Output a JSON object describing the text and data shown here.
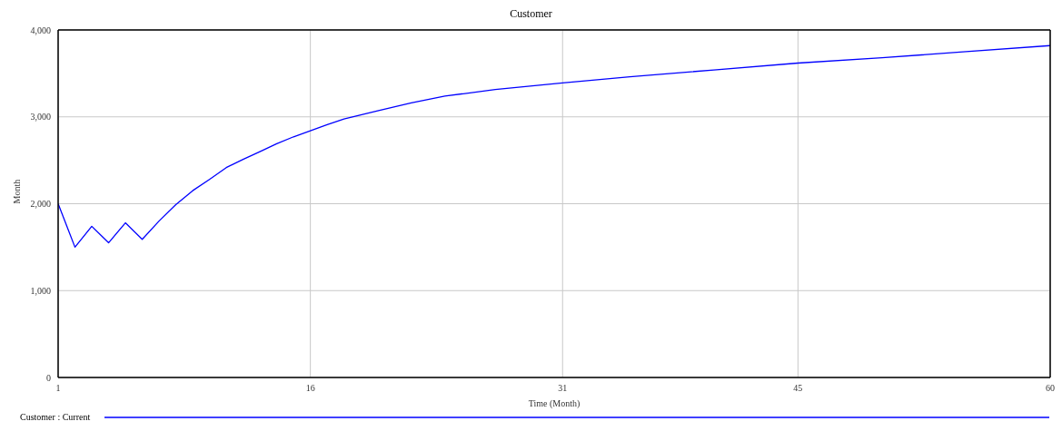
{
  "chart_data": {
    "type": "line",
    "title": "Customer",
    "xlabel": "Time (Month)",
    "ylabel": "Month",
    "series": [
      {
        "name": "Customer : Current",
        "color": "#0000ff",
        "x": [
          1,
          2,
          3,
          4,
          5,
          6,
          7,
          8,
          9,
          10,
          11,
          12,
          13,
          14,
          15,
          16,
          17,
          18,
          20,
          22,
          24,
          27,
          31,
          35,
          40,
          45,
          50,
          55,
          60
        ],
        "values": [
          2000,
          1500,
          1740,
          1550,
          1780,
          1590,
          1800,
          1990,
          2150,
          2280,
          2416,
          2510,
          2600,
          2690,
          2770,
          2840,
          2910,
          2975,
          3070,
          3160,
          3238,
          3315,
          3390,
          3460,
          3540,
          3619,
          3680,
          3750,
          3820
        ]
      }
    ],
    "xlim": [
      1,
      60
    ],
    "xticks": [
      1,
      16,
      31,
      45,
      60
    ],
    "ylim": [
      0,
      4000
    ],
    "yticks": [
      0,
      {
        "value": 1000,
        "label": "1,000"
      },
      {
        "value": 2000,
        "label": "2,000"
      },
      {
        "value": 3000,
        "label": "3,000"
      },
      {
        "value": 4000,
        "label": "4,000"
      }
    ],
    "grid": true,
    "legend": "bottom left",
    "marker": "none",
    "line_style": "solid"
  }
}
